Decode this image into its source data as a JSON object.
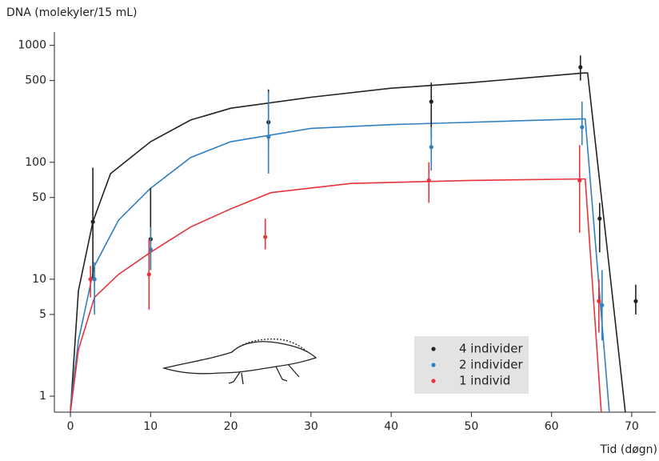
{
  "chart_data": {
    "type": "scatter",
    "y_label": "DNA (molekyler/15 mL)",
    "x_label": "Tid (døgn)",
    "log_y": true,
    "xlim": [
      -2,
      73
    ],
    "xticks": [
      0,
      10,
      20,
      30,
      40,
      50,
      60,
      70
    ],
    "ylim": [
      0.73,
      1300
    ],
    "yticks": [
      1,
      5,
      10,
      50,
      100,
      500,
      1000
    ],
    "legend": "lower-right",
    "series": [
      {
        "name": "4 individer",
        "color": "#222222",
        "x": [
          2.8,
          10,
          24.7,
          45,
          63.6,
          66,
          70.5
        ],
        "values": [
          31,
          22,
          220,
          330,
          650,
          33,
          6.5
        ],
        "err_low": [
          10,
          12,
          130,
          160,
          500,
          17,
          5
        ],
        "err_high": [
          90,
          60,
          420,
          480,
          820,
          45,
          9
        ]
      },
      {
        "name": "2 individer",
        "color": "#2f7fc1",
        "x": [
          3,
          10,
          24.7,
          45,
          63.8,
          66.3
        ],
        "values": [
          10,
          18,
          165,
          135,
          200,
          6
        ],
        "err_low": [
          5,
          12,
          80,
          85,
          140,
          3
        ],
        "err_high": [
          14,
          28,
          400,
          200,
          330,
          12
        ]
      },
      {
        "name": "1 individ",
        "color": "#e8333c",
        "x": [
          2.5,
          9.8,
          24.3,
          44.7,
          63.5,
          65.9
        ],
        "values": [
          10,
          11,
          23,
          70,
          70,
          6.5
        ],
        "err_low": [
          7,
          5.5,
          18,
          45,
          25,
          3.5
        ],
        "err_high": [
          13,
          22,
          33,
          100,
          140,
          10
        ]
      }
    ],
    "fits": [
      {
        "color": "#222222",
        "x": [
          0,
          1,
          2.8,
          5,
          10,
          15,
          20,
          30,
          40,
          50,
          64,
          64.5,
          69.2
        ],
        "values": [
          0.73,
          8,
          31,
          80,
          150,
          230,
          290,
          360,
          430,
          480,
          580,
          580,
          0.73
        ]
      },
      {
        "color": "#2f7fc1",
        "x": [
          0,
          1,
          3,
          6,
          10,
          15,
          20,
          30,
          40,
          50,
          63.8,
          64.2,
          67.2
        ],
        "values": [
          0.8,
          3,
          13,
          32,
          60,
          110,
          150,
          195,
          210,
          220,
          235,
          235,
          0.73
        ]
      },
      {
        "color": "#e8333c",
        "x": [
          0,
          1,
          3,
          6,
          10,
          15,
          20,
          25,
          35,
          50,
          63.5,
          64.2,
          66.2
        ],
        "values": [
          0.73,
          2.5,
          7,
          11,
          17,
          28,
          40,
          55,
          66,
          70,
          72,
          72,
          0.73
        ]
      }
    ]
  }
}
